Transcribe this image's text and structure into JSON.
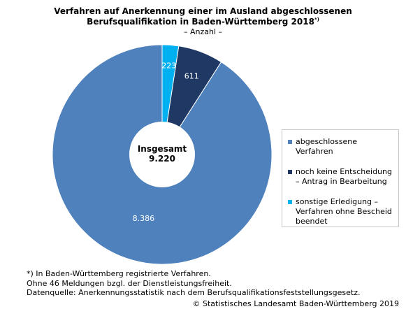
{
  "chart_data": {
    "type": "pie",
    "title_lines": [
      "Verfahren auf Anerkennung einer im Ausland abgeschlossenen",
      "Berufsqualifikation in Baden-Württemberg 2018"
    ],
    "title_footnote_marker": "*)",
    "subtitle": "– Anzahl –",
    "center_label": "Insgesamt",
    "center_value": "9.220",
    "slices": [
      {
        "label": "abgeschlossene Verfahren",
        "value": 8386,
        "value_label": "8.386",
        "color": "#4f81bd",
        "label_color": "#ffffff"
      },
      {
        "label": "noch keine Entscheidung – Antrag in Bearbeitung",
        "value": 611,
        "value_label": "611",
        "color": "#1f3864",
        "label_color": "#ffffff"
      },
      {
        "label": "sonstige Erledigung – Verfahren ohne Bescheid beendet",
        "value": 223,
        "value_label": "223",
        "color": "#00b0f0",
        "label_color": "#ffffff"
      }
    ],
    "legend_placement": "right"
  },
  "footnotes": [
    "*) In Baden-Württemberg registrierte Verfahren.",
    "Ohne 46 Meldungen bzgl. der Dienstleistungsfreiheit.",
    "Datenquelle: Anerkennungsstatistik nach dem Berufsqualifikationsfeststellungsgesetz."
  ],
  "copyright": "© Statistisches Landesamt Baden-Württemberg 2019"
}
